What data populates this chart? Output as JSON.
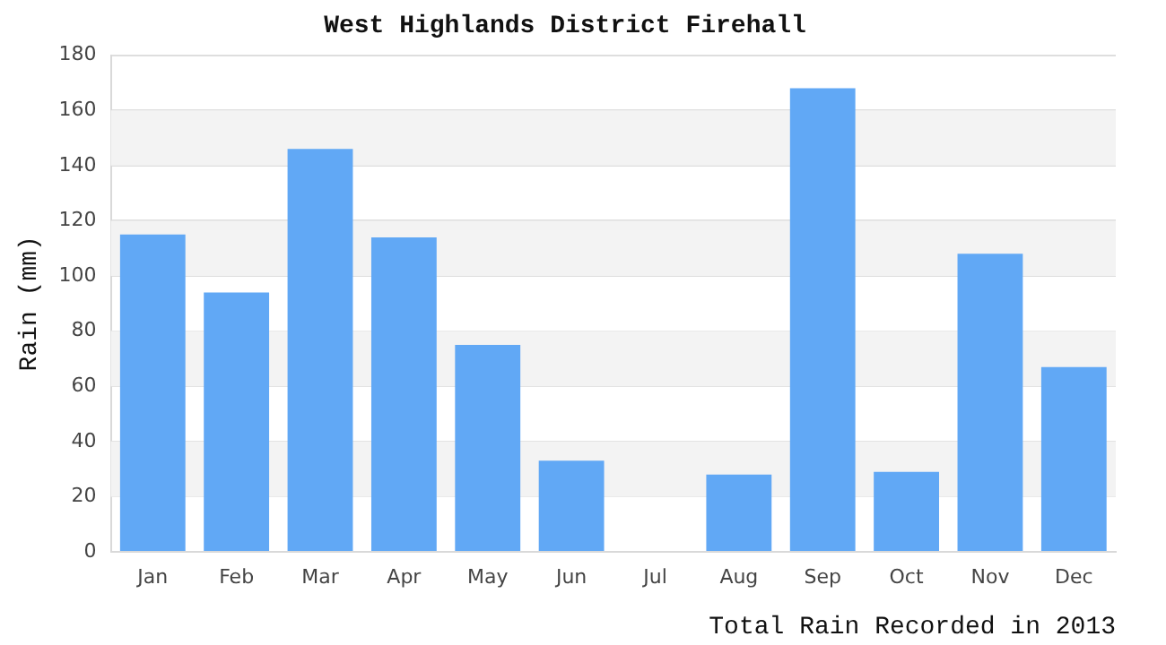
{
  "chart_data": {
    "type": "bar",
    "title": "West Highlands District Firehall",
    "xlabel": "Total Rain Recorded in 2013",
    "ylabel": "Rain (mm)",
    "categories": [
      "Jan",
      "Feb",
      "Mar",
      "Apr",
      "May",
      "Jun",
      "Jul",
      "Aug",
      "Sep",
      "Oct",
      "Nov",
      "Dec"
    ],
    "values": [
      115,
      94,
      146,
      114,
      75,
      33,
      0,
      28,
      168,
      29,
      108,
      67
    ],
    "color": "#61a8f5",
    "ylim": [
      0,
      180
    ],
    "yticks": [
      0,
      20,
      40,
      60,
      80,
      100,
      120,
      140,
      160,
      180
    ],
    "grid": "y",
    "legend": false
  }
}
